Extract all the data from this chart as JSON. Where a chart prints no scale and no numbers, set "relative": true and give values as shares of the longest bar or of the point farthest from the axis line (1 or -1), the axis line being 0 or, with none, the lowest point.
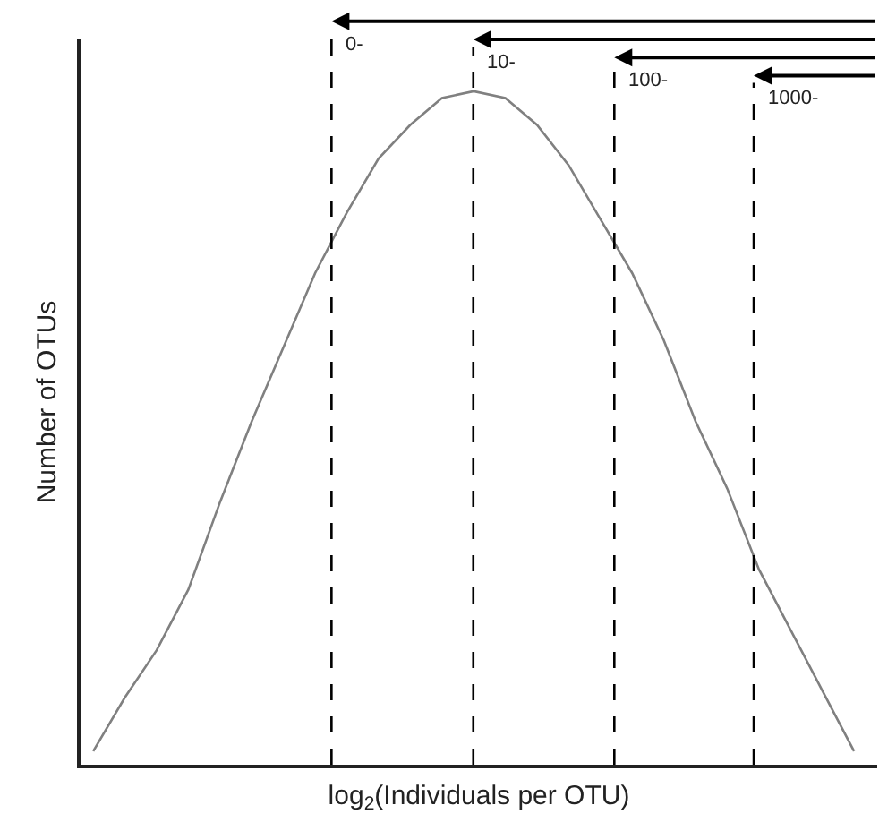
{
  "chart_data": {
    "type": "line",
    "relative": true,
    "xlabel": "log$_{2}$(Individuals per OTU)",
    "ylabel": "Number of OTUs",
    "categories": [
      null,
      null,
      null,
      null,
      null,
      null,
      null,
      null,
      null,
      null,
      null,
      null,
      null,
      null,
      null,
      null,
      null,
      null,
      null,
      null,
      null,
      null,
      null,
      null,
      null
    ],
    "marker": "none",
    "line_style": "solid",
    "series": [
      {
        "color": "#808080",
        "values": [
          0.02,
          0.1,
          0.17,
          0.26,
          0.39,
          0.51,
          0.62,
          0.73,
          0.82,
          0.9,
          0.95,
          0.99,
          1,
          0.99,
          0.95,
          0.89,
          0.81,
          0.73,
          0.63,
          0.51,
          0.41,
          0.29,
          0.2,
          0.11,
          0.02
        ]
      }
    ],
    "annotations": [
      "0-",
      "10-",
      "100-",
      "1000-"
    ]
  }
}
